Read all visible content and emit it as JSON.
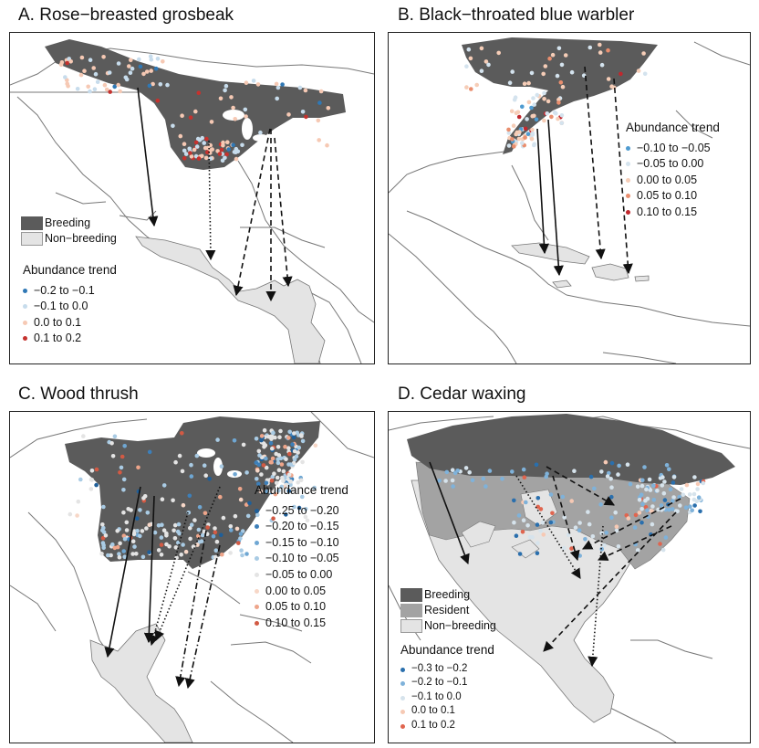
{
  "colors": {
    "breeding": "#5b5b5b",
    "resident": "#a3a3a3",
    "nonbreeding": "#e4e4e4",
    "trend_strong_negative": "#2166ac",
    "trend_negative": "#6baed6",
    "trend_weak_negative": "#bcd4e6",
    "trend_neutral": "#e8e8e8",
    "trend_weak_positive": "#f6c9b4",
    "trend_positive": "#ec9a7c",
    "trend_strong_positive": "#cb3b33"
  },
  "panels": [
    {
      "title": "A. Rose−breasted grosbeak",
      "range_legend": [
        "Breeding",
        "Non−breeding"
      ],
      "trend_title": "Abundance trend",
      "trend_classes": [
        {
          "label": "−0.2 to −0.1",
          "color": "#2f78b5"
        },
        {
          "label": "−0.1 to 0.0",
          "color": "#c7dcec"
        },
        {
          "label": "0.0 to 0.1",
          "color": "#f6c9b4"
        },
        {
          "label": "0.1 to 0.2",
          "color": "#c5322e"
        }
      ],
      "arrows": [
        {
          "from": [
            150,
            95
          ],
          "to": [
            168,
            246
          ],
          "style": "solid"
        },
        {
          "from": [
            228,
            153
          ],
          "to": [
            230,
            283
          ],
          "style": "dotted"
        },
        {
          "from": [
            295,
            140
          ],
          "to": [
            258,
            322
          ],
          "style": "dashed"
        },
        {
          "from": [
            296,
            140
          ],
          "to": [
            296,
            328
          ],
          "style": "dashed"
        },
        {
          "from": [
            300,
            150
          ],
          "to": [
            315,
            312
          ],
          "style": "dashed"
        }
      ]
    },
    {
      "title": "B. Black−throated blue warbler",
      "trend_title": "Abundance trend",
      "trend_classes": [
        {
          "label": "−0.10 to −0.05",
          "color": "#4f9bd0"
        },
        {
          "label": "−0.05 to 0.00",
          "color": "#d4e3ee"
        },
        {
          "label": "0.00 to 0.05",
          "color": "#f6cdb7"
        },
        {
          "label": "0.05 to 0.10",
          "color": "#e98e6e"
        },
        {
          "label": "0.10 to 0.15",
          "color": "#c1272d"
        }
      ],
      "arrows": [
        {
          "from": [
            588,
            140
          ],
          "to": [
            596,
            276
          ],
          "style": "solid"
        },
        {
          "from": [
            600,
            130
          ],
          "to": [
            612,
            300
          ],
          "style": "solid"
        },
        {
          "from": [
            640,
            72
          ],
          "to": [
            658,
            282
          ],
          "style": "dashed"
        },
        {
          "from": [
            672,
            85
          ],
          "to": [
            688,
            298
          ],
          "style": "dashed"
        }
      ]
    },
    {
      "title": "C. Wood thrush",
      "trend_title": "Abundance trend",
      "trend_classes": [
        {
          "label": "−0.25 to −0.20",
          "color": "#1f5f99"
        },
        {
          "label": "−0.20 to −0.15",
          "color": "#3d7fb9"
        },
        {
          "label": "−0.15 to −0.10",
          "color": "#6fa7d3"
        },
        {
          "label": "−0.10 to −0.05",
          "color": "#a9cbe4"
        },
        {
          "label": "−0.05 to 0.00",
          "color": "#e4e4e4"
        },
        {
          "label": "0.00 to 0.05",
          "color": "#f7d7c7"
        },
        {
          "label": "0.05 to 0.10",
          "color": "#eea58a"
        },
        {
          "label": "0.10 to 0.15",
          "color": "#d25a44"
        }
      ],
      "arrows": [
        {
          "from": [
            153,
            532
          ],
          "to": [
            117,
            718
          ],
          "style": "solid"
        },
        {
          "from": [
            168,
            542
          ],
          "to": [
            162,
            702
          ],
          "style": "solid"
        },
        {
          "from": [
            205,
            560
          ],
          "to": [
            165,
            705
          ],
          "style": "dotted"
        },
        {
          "from": [
            240,
            532
          ],
          "to": [
            170,
            700
          ],
          "style": "dotted"
        },
        {
          "from": [
            225,
            580
          ],
          "to": [
            195,
            750
          ],
          "style": "dashdot"
        },
        {
          "from": [
            240,
            596
          ],
          "to": [
            205,
            752
          ],
          "style": "dashdot"
        }
      ]
    },
    {
      "title": "D. Cedar waxing",
      "range_legend": [
        "Breeding",
        "Resident",
        "Non−breeding"
      ],
      "trend_title": "Abundance trend",
      "trend_classes": [
        {
          "label": "−0.3 to −0.2",
          "color": "#2a6fad"
        },
        {
          "label": "−0.2 to −0.1",
          "color": "#7fb2da"
        },
        {
          "label": "−0.1 to 0.0",
          "color": "#d6e3ec"
        },
        {
          "label": "0.0 to 0.1",
          "color": "#f6c9b4"
        },
        {
          "label": "0.1 to 0.2",
          "color": "#e0654f"
        }
      ],
      "arrows": [
        {
          "from": [
            470,
            505
          ],
          "to": [
            512,
            616
          ],
          "style": "solid"
        },
        {
          "from": [
            565,
            520
          ],
          "to": [
            635,
            632
          ],
          "style": "dotted"
        },
        {
          "from": [
            660,
            575
          ],
          "to": [
            648,
            728
          ],
          "style": "dotted"
        },
        {
          "from": [
            598,
            510
          ],
          "to": [
            672,
            552
          ],
          "style": "dashed"
        },
        {
          "from": [
            605,
            520
          ],
          "to": [
            632,
            612
          ],
          "style": "dashed"
        },
        {
          "from": [
            745,
            545
          ],
          "to": [
            638,
            600
          ],
          "style": "dashed"
        },
        {
          "from": [
            740,
            560
          ],
          "to": [
            595,
            712
          ],
          "style": "dashed"
        },
        {
          "from": [
            735,
            575
          ],
          "to": [
            655,
            612
          ],
          "style": "dashed"
        }
      ]
    }
  ]
}
